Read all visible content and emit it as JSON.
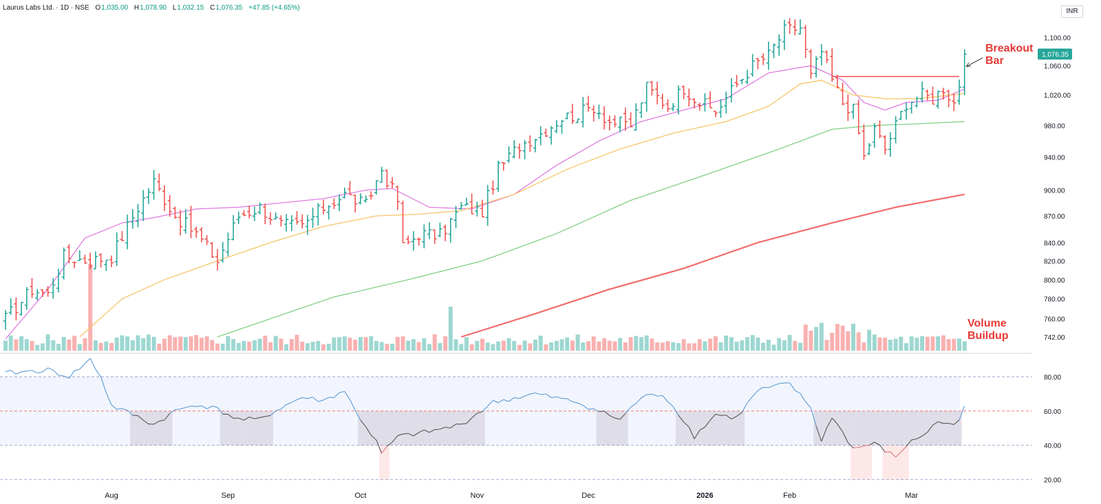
{
  "header": {
    "symbol": "Laurus Labs Ltd. · 1D · NSE",
    "open_label": "O",
    "open_value": "1,035.00",
    "high_label": "H",
    "high_value": "1,078.90",
    "low_label": "L",
    "low_value": "1,032.15",
    "close_label": "C",
    "close_value": "1,076.35",
    "change": "+47.85 (+4.65%)"
  },
  "currency_button": "INR",
  "annotations": {
    "breakout_line1": "Breakout",
    "breakout_line2": "Bar",
    "volume_line1": "Volume",
    "volume_line2": "Buildup"
  },
  "colors": {
    "up": "#26a69a",
    "down": "#ef5350",
    "ema20": "#e07be0",
    "ema50": "#f7c469",
    "ema100": "#7fcf85",
    "ema200": "#f26b6b",
    "rsi": "#5b9bd5",
    "resistance": "#f0595e"
  },
  "chart_data": [
    {
      "type": "ohlc",
      "title": "Laurus Labs Ltd. · 1D · NSE",
      "x_tick_labels": [
        "Aug",
        "Sep",
        "Oct",
        "Nov",
        "Dec",
        "2026",
        "Feb",
        "Mar"
      ],
      "y_tick_labels": [
        "1,100.00",
        "1,060.00",
        "1,020.00",
        "980.00",
        "940.00",
        "900.00",
        "870.00",
        "840.00",
        "820.00",
        "800.00",
        "780.00",
        "760.00",
        "742.00"
      ],
      "y_range": [
        730,
        1135
      ],
      "y_scale": "log",
      "last_price_label": "1,076.35",
      "resistance_level": 1045,
      "anchor_closes": [
        [
          0,
          760
        ],
        [
          5,
          790
        ],
        [
          8,
          785
        ],
        [
          11,
          825
        ],
        [
          16,
          820
        ],
        [
          20,
          825
        ],
        [
          25,
          880
        ],
        [
          28,
          910
        ],
        [
          32,
          870
        ],
        [
          36,
          850
        ],
        [
          40,
          820
        ],
        [
          44,
          870
        ],
        [
          48,
          880
        ],
        [
          52,
          860
        ],
        [
          56,
          858
        ],
        [
          60,
          880
        ],
        [
          64,
          895
        ],
        [
          68,
          882
        ],
        [
          71,
          925
        ],
        [
          74,
          888
        ],
        [
          75,
          835
        ],
        [
          78,
          850
        ],
        [
          82,
          848
        ],
        [
          86,
          880
        ],
        [
          90,
          875
        ],
        [
          93,
          925
        ],
        [
          97,
          955
        ],
        [
          101,
          970
        ],
        [
          105,
          990
        ],
        [
          108,
          995
        ],
        [
          111,
          1005
        ],
        [
          114,
          985
        ],
        [
          118,
          980
        ],
        [
          121,
          1030
        ],
        [
          125,
          1005
        ],
        [
          128,
          1030
        ],
        [
          131,
          1010
        ],
        [
          134,
          998
        ],
        [
          138,
          1035
        ],
        [
          141,
          1060
        ],
        [
          144,
          1075
        ],
        [
          147,
          1110
        ],
        [
          150,
          1115
        ],
        [
          152,
          1045
        ],
        [
          154,
          1080
        ],
        [
          156,
          1040
        ],
        [
          158,
          1010
        ],
        [
          160,
          1000
        ],
        [
          162,
          940
        ],
        [
          164,
          975
        ],
        [
          166,
          950
        ],
        [
          168,
          980
        ],
        [
          170,
          1010
        ],
        [
          173,
          1020
        ],
        [
          175,
          1015
        ],
        [
          177,
          1030
        ],
        [
          179,
          1010
        ],
        [
          180,
          1035
        ],
        [
          181,
          1076.35
        ]
      ],
      "series": [
        {
          "name": "EMA 20",
          "values": [
            [
              0,
              740
            ],
            [
              8,
              790
            ],
            [
              15,
              845
            ],
            [
              22,
              862
            ],
            [
              28,
              868
            ],
            [
              36,
              878
            ],
            [
              44,
              880
            ],
            [
              52,
              885
            ],
            [
              60,
              890
            ],
            [
              68,
              900
            ],
            [
              73,
              902
            ],
            [
              80,
              880
            ],
            [
              88,
              878
            ],
            [
              96,
              895
            ],
            [
              104,
              930
            ],
            [
              112,
              960
            ],
            [
              120,
              985
            ],
            [
              128,
              1000
            ],
            [
              136,
              1015
            ],
            [
              144,
              1050
            ],
            [
              152,
              1060
            ],
            [
              158,
              1040
            ],
            [
              162,
              1010
            ],
            [
              166,
              1000
            ],
            [
              170,
              1010
            ],
            [
              176,
              1013
            ],
            [
              181,
              1028
            ]
          ]
        },
        {
          "name": "EMA 50",
          "values": [
            [
              14,
              742
            ],
            [
              22,
              780
            ],
            [
              30,
              800
            ],
            [
              40,
              820
            ],
            [
              50,
              840
            ],
            [
              60,
              858
            ],
            [
              70,
              870
            ],
            [
              78,
              872
            ],
            [
              86,
              876
            ],
            [
              96,
              895
            ],
            [
              106,
              925
            ],
            [
              116,
              950
            ],
            [
              126,
              970
            ],
            [
              136,
              985
            ],
            [
              144,
              1005
            ],
            [
              150,
              1035
            ],
            [
              154,
              1040
            ],
            [
              160,
              1020
            ],
            [
              166,
              1015
            ],
            [
              172,
              1015
            ],
            [
              176,
              1018
            ],
            [
              181,
              1022
            ]
          ]
        },
        {
          "name": "EMA 100",
          "values": [
            [
              40,
              742
            ],
            [
              50,
              760
            ],
            [
              62,
              782
            ],
            [
              76,
              800
            ],
            [
              90,
              820
            ],
            [
              104,
              850
            ],
            [
              118,
              888
            ],
            [
              132,
              918
            ],
            [
              146,
              950
            ],
            [
              156,
              975
            ],
            [
              164,
              980
            ],
            [
              172,
              982
            ],
            [
              181,
              985
            ]
          ]
        },
        {
          "name": "EMA 200",
          "values": [
            [
              86,
              742
            ],
            [
              100,
              765
            ],
            [
              114,
              790
            ],
            [
              128,
              812
            ],
            [
              142,
              840
            ],
            [
              156,
              862
            ],
            [
              168,
              880
            ],
            [
              181,
              895
            ]
          ]
        }
      ]
    },
    {
      "type": "bar",
      "title": "",
      "series_name": "",
      "annotation": "Volume Buildup",
      "spike_indices": [
        16,
        84
      ]
    },
    {
      "type": "line",
      "title": "",
      "y_tick_labels": [
        "80.00",
        "60.00",
        "40.00",
        "20.00"
      ],
      "y_range": [
        15,
        92
      ],
      "reference_lines": [
        80,
        60,
        40,
        20
      ],
      "anchors": [
        [
          0,
          82
        ],
        [
          8,
          84
        ],
        [
          12,
          80
        ],
        [
          16,
          90
        ],
        [
          18,
          80
        ],
        [
          20,
          63
        ],
        [
          24,
          58
        ],
        [
          28,
          52
        ],
        [
          32,
          60
        ],
        [
          36,
          64
        ],
        [
          40,
          61
        ],
        [
          44,
          55
        ],
        [
          48,
          55
        ],
        [
          52,
          62
        ],
        [
          56,
          68
        ],
        [
          60,
          66
        ],
        [
          64,
          72
        ],
        [
          66,
          60
        ],
        [
          70,
          42
        ],
        [
          71,
          35
        ],
        [
          74,
          45
        ],
        [
          80,
          48
        ],
        [
          86,
          52
        ],
        [
          92,
          65
        ],
        [
          100,
          70
        ],
        [
          108,
          65
        ],
        [
          112,
          60
        ],
        [
          116,
          55
        ],
        [
          120,
          68
        ],
        [
          124,
          70
        ],
        [
          128,
          55
        ],
        [
          130,
          45
        ],
        [
          134,
          58
        ],
        [
          138,
          56
        ],
        [
          142,
          72
        ],
        [
          148,
          76
        ],
        [
          152,
          62
        ],
        [
          154,
          42
        ],
        [
          156,
          57
        ],
        [
          160,
          38
        ],
        [
          164,
          41
        ],
        [
          168,
          33
        ],
        [
          170,
          40
        ],
        [
          174,
          48
        ],
        [
          176,
          54
        ],
        [
          178,
          52
        ],
        [
          180,
          55
        ],
        [
          181,
          63
        ]
      ]
    }
  ]
}
